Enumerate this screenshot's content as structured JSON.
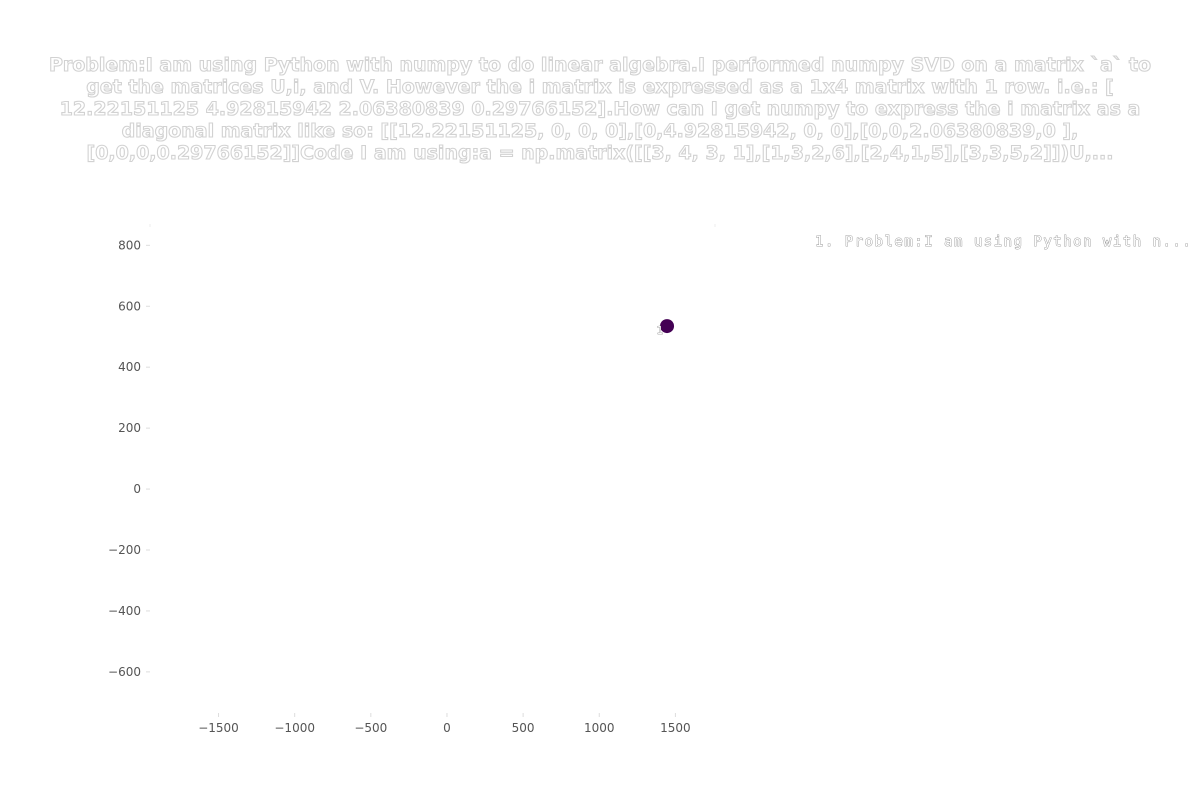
{
  "title": "Problem:I am using Python with numpy to do linear algebra.I performed numpy SVD on a matrix `a` to get the matrices U,i, and V. However the i matrix is expressed as a 1x4 matrix with 1 row. i.e.: [ 12.22151125 4.92815942 2.06380839 0.29766152].How can I get numpy to express the i matrix as a diagonal matrix like so: [[12.22151125, 0, 0, 0],[0,4.92815942, 0, 0],[0,0,2.06380839,0 ],[0,0,0,0.29766152]]Code I am using:a = np.matrix([[3, 4, 3, 1],[1,3,2,6],[2,4,1,5],[3,3,5,2]])U,...",
  "chart_data": {
    "type": "scatter",
    "xlim": [
      -1950,
      1760
    ],
    "ylim": [
      -735,
      870
    ],
    "x_ticks": [
      -1500,
      -1000,
      -500,
      0,
      500,
      1000,
      1500
    ],
    "x_tick_labels": [
      "−1500",
      "−1000",
      "−500",
      "0",
      "500",
      "1000",
      "1500"
    ],
    "y_ticks": [
      -600,
      -400,
      -200,
      0,
      200,
      400,
      600,
      800
    ],
    "y_tick_labels": [
      "−600",
      "−400",
      "−200",
      "0",
      "200",
      "400",
      "600",
      "800"
    ],
    "grid": false,
    "legend_position": "top-right",
    "legend_entries": [
      "1. Problem:I am using Python with n..."
    ],
    "points": [
      {
        "label": "1",
        "x": 1445,
        "y": 535,
        "color": "#440154"
      }
    ]
  }
}
